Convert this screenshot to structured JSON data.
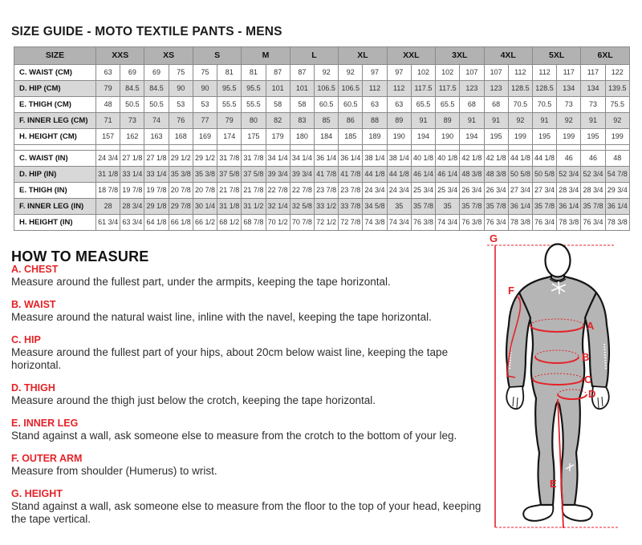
{
  "title": {
    "prefix": "SIZE GUIDE ",
    "emphasis": "- MOTO TEXTILE PANTS - MENS"
  },
  "table": {
    "corner_label": "SIZE",
    "sizes": [
      "XXS",
      "XS",
      "S",
      "M",
      "L",
      "XL",
      "XXL",
      "3XL",
      "4XL",
      "5XL",
      "6XL"
    ],
    "rows": [
      {
        "label": "C. WAIST (CM)",
        "shaded": false,
        "values": [
          "63",
          "69",
          "69",
          "75",
          "75",
          "81",
          "81",
          "87",
          "87",
          "92",
          "92",
          "97",
          "97",
          "102",
          "102",
          "107",
          "107",
          "112",
          "112",
          "117",
          "117",
          "122"
        ]
      },
      {
        "label": "D. HIP (CM)",
        "shaded": true,
        "values": [
          "79",
          "84.5",
          "84.5",
          "90",
          "90",
          "95.5",
          "95.5",
          "101",
          "101",
          "106.5",
          "106.5",
          "112",
          "112",
          "117.5",
          "117.5",
          "123",
          "123",
          "128.5",
          "128.5",
          "134",
          "134",
          "139.5"
        ]
      },
      {
        "label": "E. THIGH (CM)",
        "shaded": false,
        "values": [
          "48",
          "50.5",
          "50.5",
          "53",
          "53",
          "55.5",
          "55.5",
          "58",
          "58",
          "60.5",
          "60.5",
          "63",
          "63",
          "65.5",
          "65.5",
          "68",
          "68",
          "70.5",
          "70.5",
          "73",
          "73",
          "75.5"
        ]
      },
      {
        "label": "F. INNER LEG (CM)",
        "shaded": true,
        "values": [
          "71",
          "73",
          "74",
          "76",
          "77",
          "79",
          "80",
          "82",
          "83",
          "85",
          "86",
          "88",
          "89",
          "91",
          "89",
          "91",
          "91",
          "92",
          "91",
          "92",
          "91",
          "92"
        ]
      },
      {
        "label": "H. HEIGHT (CM)",
        "shaded": false,
        "values": [
          "157",
          "162",
          "163",
          "168",
          "169",
          "174",
          "175",
          "179",
          "180",
          "184",
          "185",
          "189",
          "190",
          "194",
          "190",
          "194",
          "195",
          "199",
          "195",
          "199",
          "195",
          "199"
        ]
      },
      {
        "separator": true
      },
      {
        "label": "C. WAIST (IN)",
        "shaded": false,
        "values": [
          "24 3/4",
          "27 1/8",
          "27 1/8",
          "29 1/2",
          "29 1/2",
          "31 7/8",
          "31 7/8",
          "34 1/4",
          "34 1/4",
          "36 1/4",
          "36 1/4",
          "38 1/4",
          "38 1/4",
          "40 1/8",
          "40 1/8",
          "42 1/8",
          "42 1/8",
          "44 1/8",
          "44 1/8",
          "46",
          "46",
          "48"
        ]
      },
      {
        "label": "D. HIP (IN)",
        "shaded": true,
        "values": [
          "31 1/8",
          "33 1/4",
          "33 1/4",
          "35 3/8",
          "35 3/8",
          "37 5/8",
          "37 5/8",
          "39 3/4",
          "39 3/4",
          "41 7/8",
          "41 7/8",
          "44 1/8",
          "44 1/8",
          "46 1/4",
          "46 1/4",
          "48 3/8",
          "48 3/8",
          "50 5/8",
          "50 5/8",
          "52 3/4",
          "52 3/4",
          "54 7/8"
        ]
      },
      {
        "label": "E. THIGH (IN)",
        "shaded": false,
        "values": [
          "18 7/8",
          "19 7/8",
          "19 7/8",
          "20 7/8",
          "20 7/8",
          "21 7/8",
          "21 7/8",
          "22 7/8",
          "22 7/8",
          "23 7/8",
          "23 7/8",
          "24 3/4",
          "24 3/4",
          "25 3/4",
          "25 3/4",
          "26 3/4",
          "26 3/4",
          "27 3/4",
          "27 3/4",
          "28 3/4",
          "28 3/4",
          "29 3/4"
        ]
      },
      {
        "label": "F. INNER LEG (IN)",
        "shaded": true,
        "values": [
          "28",
          "28 3/4",
          "29 1/8",
          "29 7/8",
          "30 1/4",
          "31 1/8",
          "31 1/2",
          "32 1/4",
          "32 5/8",
          "33 1/2",
          "33 7/8",
          "34 5/8",
          "35",
          "35 7/8",
          "35",
          "35 7/8",
          "35 7/8",
          "36 1/4",
          "35 7/8",
          "36 1/4",
          "35 7/8",
          "36 1/4"
        ]
      },
      {
        "label": "H. HEIGHT (IN)",
        "shaded": false,
        "values": [
          "61 3/4",
          "63 3/4",
          "64 1/8",
          "66 1/8",
          "66 1/2",
          "68 1/2",
          "68 7/8",
          "70 1/2",
          "70 7/8",
          "72 1/2",
          "72 7/8",
          "74 3/8",
          "74 3/4",
          "76 3/8",
          "74 3/4",
          "76 3/8",
          "76 3/4",
          "78 3/8",
          "76 3/4",
          "78 3/8",
          "76 3/4",
          "78 3/8"
        ]
      }
    ]
  },
  "how_to_measure": {
    "heading": "HOW TO MEASURE",
    "items": [
      {
        "label": "A. CHEST",
        "text": "Measure around the fullest part, under the armpits, keeping the tape horizontal."
      },
      {
        "label": "B. WAIST",
        "text": "Measure around the natural waist line, inline with the navel, keeping the tape horizontal."
      },
      {
        "label": "C. HIP",
        "text": "Measure around the fullest part of your hips, about 20cm below waist line, keeping the tape horizontal."
      },
      {
        "label": "D. THIGH",
        "text": "Measure around the thigh just below the crotch, keeping the tape horizontal."
      },
      {
        "label": "E. INNER LEG",
        "text": "Stand against a wall, ask someone else to measure from the crotch to the bottom of your leg."
      },
      {
        "label": "F. OUTER ARM",
        "text": "Measure from shoulder (Humerus) to wrist."
      },
      {
        "label": "G. HEIGHT",
        "text": "Stand against a wall, ask someone else to measure from the floor to the top of your head, keeping the tape vertical."
      }
    ]
  },
  "figure": {
    "labels": {
      "a": "A",
      "b": "B",
      "c": "C",
      "d": "D",
      "e": "E",
      "f": "F",
      "g": "G"
    }
  },
  "colors": {
    "accent_red": "#e42328",
    "table_header_gray": "#b2b2b2",
    "table_alt_row_gray": "#d8d8d8",
    "figure_body_gray": "#b5b5b5"
  }
}
